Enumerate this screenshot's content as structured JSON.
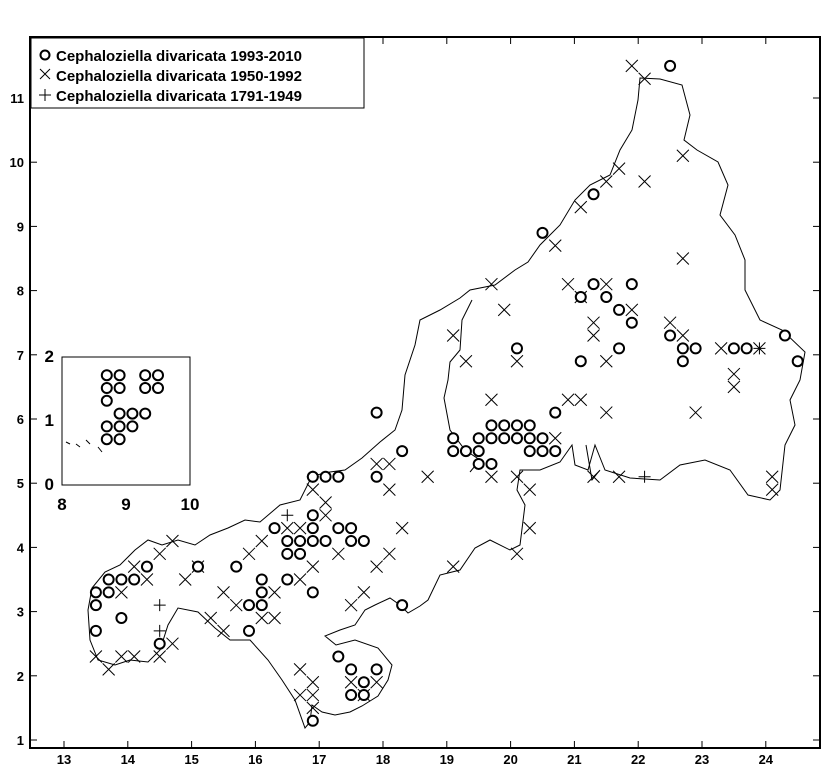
{
  "legend": {
    "entries": [
      {
        "symbol": "circle",
        "label": "Cephaloziella divaricata 1993-2010"
      },
      {
        "symbol": "cross",
        "label": "Cephaloziella divaricata 1950-1992"
      },
      {
        "symbol": "plus",
        "label": "Cephaloziella divaricata 1791-1949"
      }
    ]
  },
  "axes": {
    "x_ticks": [
      13,
      14,
      15,
      16,
      17,
      18,
      19,
      20,
      21,
      22,
      23,
      24
    ],
    "y_ticks": [
      1,
      2,
      3,
      4,
      5,
      6,
      7,
      8,
      9,
      10,
      11
    ]
  },
  "inset": {
    "x_ticks": [
      8,
      9,
      10
    ],
    "y_ticks": [
      0,
      1,
      2
    ]
  },
  "records": {
    "circle_1993_2010": [
      [
        13.5,
        3.3
      ],
      [
        13.5,
        3.1
      ],
      [
        13.5,
        2.7
      ],
      [
        13.7,
        3.5
      ],
      [
        13.7,
        3.3
      ],
      [
        13.9,
        3.5
      ],
      [
        14.1,
        3.5
      ],
      [
        13.9,
        2.9
      ],
      [
        14.3,
        3.7
      ],
      [
        14.5,
        2.5
      ],
      [
        15.1,
        3.7
      ],
      [
        15.7,
        3.7
      ],
      [
        15.9,
        3.1
      ],
      [
        15.9,
        2.7
      ],
      [
        16.1,
        3.5
      ],
      [
        16.1,
        3.3
      ],
      [
        16.1,
        3.1
      ],
      [
        16.3,
        4.3
      ],
      [
        16.5,
        4.1
      ],
      [
        16.5,
        3.9
      ],
      [
        16.5,
        3.5
      ],
      [
        16.7,
        4.1
      ],
      [
        16.7,
        3.9
      ],
      [
        16.9,
        4.5
      ],
      [
        16.9,
        4.3
      ],
      [
        16.9,
        4.1
      ],
      [
        16.9,
        3.3
      ],
      [
        17.1,
        4.1
      ],
      [
        16.9,
        5.1
      ],
      [
        17.1,
        5.1
      ],
      [
        17.3,
        5.1
      ],
      [
        17.3,
        4.3
      ],
      [
        17.5,
        4.3
      ],
      [
        17.5,
        4.1
      ],
      [
        17.7,
        4.1
      ],
      [
        17.9,
        6.1
      ],
      [
        17.9,
        5.1
      ],
      [
        18.3,
        5.5
      ],
      [
        18.3,
        3.1
      ],
      [
        17.3,
        2.3
      ],
      [
        17.5,
        2.1
      ],
      [
        17.5,
        1.7
      ],
      [
        17.7,
        1.9
      ],
      [
        17.7,
        1.7
      ],
      [
        17.9,
        2.1
      ],
      [
        16.9,
        1.3
      ],
      [
        19.1,
        5.7
      ],
      [
        19.1,
        5.5
      ],
      [
        19.3,
        5.5
      ],
      [
        19.5,
        5.7
      ],
      [
        19.5,
        5.5
      ],
      [
        19.5,
        5.3
      ],
      [
        19.7,
        5.9
      ],
      [
        19.7,
        5.7
      ],
      [
        19.7,
        5.3
      ],
      [
        19.9,
        5.9
      ],
      [
        19.9,
        5.7
      ],
      [
        20.1,
        5.9
      ],
      [
        20.1,
        5.7
      ],
      [
        20.3,
        5.9
      ],
      [
        20.3,
        5.7
      ],
      [
        20.3,
        5.5
      ],
      [
        20.5,
        5.7
      ],
      [
        20.5,
        5.5
      ],
      [
        20.7,
        5.5
      ],
      [
        20.7,
        6.1
      ],
      [
        20.1,
        7.1
      ],
      [
        20.5,
        8.9
      ],
      [
        21.1,
        7.9
      ],
      [
        21.1,
        6.9
      ],
      [
        21.3,
        8.1
      ],
      [
        21.3,
        9.5
      ],
      [
        21.5,
        7.9
      ],
      [
        21.7,
        7.7
      ],
      [
        21.7,
        7.1
      ],
      [
        21.9,
        8.1
      ],
      [
        21.9,
        7.5
      ],
      [
        22.5,
        11.5
      ],
      [
        22.5,
        7.3
      ],
      [
        22.7,
        7.1
      ],
      [
        22.7,
        6.9
      ],
      [
        22.9,
        7.1
      ],
      [
        23.5,
        7.1
      ],
      [
        23.7,
        7.1
      ],
      [
        24.3,
        7.3
      ],
      [
        24.5,
        6.9
      ]
    ],
    "inset_circle": [
      [
        8.7,
        1.7
      ],
      [
        8.7,
        1.5
      ],
      [
        8.7,
        1.3
      ],
      [
        8.7,
        0.9
      ],
      [
        8.7,
        0.7
      ],
      [
        8.9,
        1.7
      ],
      [
        8.9,
        1.5
      ],
      [
        8.9,
        1.1
      ],
      [
        8.9,
        0.9
      ],
      [
        8.9,
        0.7
      ],
      [
        9.1,
        1.1
      ],
      [
        9.1,
        0.9
      ],
      [
        9.3,
        1.7
      ],
      [
        9.3,
        1.5
      ],
      [
        9.3,
        1.1
      ],
      [
        9.5,
        1.7
      ],
      [
        9.5,
        1.5
      ]
    ],
    "cross_1950_1992": [
      [
        13.5,
        2.3
      ],
      [
        13.7,
        2.1
      ],
      [
        13.9,
        3.3
      ],
      [
        13.9,
        2.3
      ],
      [
        14.1,
        3.7
      ],
      [
        14.1,
        2.3
      ],
      [
        14.3,
        3.5
      ],
      [
        14.5,
        3.9
      ],
      [
        14.5,
        2.3
      ],
      [
        14.7,
        4.1
      ],
      [
        14.7,
        2.5
      ],
      [
        14.9,
        3.5
      ],
      [
        15.1,
        3.7
      ],
      [
        15.3,
        2.9
      ],
      [
        15.5,
        3.3
      ],
      [
        15.5,
        2.7
      ],
      [
        15.7,
        3.1
      ],
      [
        15.9,
        3.9
      ],
      [
        16.1,
        4.1
      ],
      [
        16.1,
        2.9
      ],
      [
        16.3,
        3.3
      ],
      [
        16.3,
        2.9
      ],
      [
        16.5,
        4.3
      ],
      [
        16.7,
        4.3
      ],
      [
        16.7,
        3.5
      ],
      [
        16.7,
        2.1
      ],
      [
        16.9,
        4.9
      ],
      [
        16.9,
        3.7
      ],
      [
        16.9,
        1.9
      ],
      [
        16.9,
        1.7
      ],
      [
        16.9,
        1.5
      ],
      [
        16.7,
        1.7
      ],
      [
        17.1,
        4.5
      ],
      [
        17.1,
        4.7
      ],
      [
        17.3,
        3.9
      ],
      [
        17.5,
        3.1
      ],
      [
        17.5,
        1.9
      ],
      [
        17.7,
        3.3
      ],
      [
        17.9,
        5.3
      ],
      [
        17.9,
        3.7
      ],
      [
        18.1,
        5.3
      ],
      [
        18.1,
        4.9
      ],
      [
        18.1,
        3.9
      ],
      [
        18.3,
        4.3
      ],
      [
        17.7,
        1.7
      ],
      [
        17.9,
        1.9
      ],
      [
        18.7,
        5.1
      ],
      [
        19.1,
        7.3
      ],
      [
        19.1,
        3.7
      ],
      [
        19.3,
        6.9
      ],
      [
        19.7,
        8.1
      ],
      [
        19.7,
        6.3
      ],
      [
        19.7,
        5.1
      ],
      [
        19.9,
        7.7
      ],
      [
        20.1,
        6.9
      ],
      [
        20.1,
        5.1
      ],
      [
        20.1,
        3.9
      ],
      [
        20.3,
        4.3
      ],
      [
        20.3,
        4.9
      ],
      [
        20.7,
        8.7
      ],
      [
        20.7,
        5.7
      ],
      [
        20.9,
        6.3
      ],
      [
        21.1,
        9.3
      ],
      [
        21.1,
        6.3
      ],
      [
        20.9,
        8.1
      ],
      [
        21.1,
        7.9
      ],
      [
        21.3,
        7.5
      ],
      [
        21.3,
        7.3
      ],
      [
        21.3,
        5.1
      ],
      [
        21.5,
        9.7
      ],
      [
        21.5,
        8.1
      ],
      [
        21.5,
        6.9
      ],
      [
        21.5,
        6.1
      ],
      [
        21.7,
        9.9
      ],
      [
        21.7,
        5.1
      ],
      [
        21.9,
        11.5
      ],
      [
        21.9,
        7.7
      ],
      [
        22.1,
        11.3
      ],
      [
        22.1,
        9.7
      ],
      [
        22.5,
        7.5
      ],
      [
        22.7,
        10.1
      ],
      [
        22.7,
        8.5
      ],
      [
        22.7,
        7.3
      ],
      [
        22.9,
        6.1
      ],
      [
        23.3,
        7.1
      ],
      [
        23.5,
        6.7
      ],
      [
        23.5,
        6.5
      ],
      [
        23.9,
        7.1
      ],
      [
        24.1,
        4.9
      ],
      [
        24.1,
        5.1
      ]
    ],
    "plus_1791_1949": [
      [
        14.5,
        3.1
      ],
      [
        14.5,
        2.7
      ],
      [
        16.5,
        4.5
      ],
      [
        16.9,
        5.1
      ],
      [
        22.1,
        5.1
      ],
      [
        23.9,
        7.1
      ],
      [
        20.1,
        5.7
      ]
    ]
  }
}
